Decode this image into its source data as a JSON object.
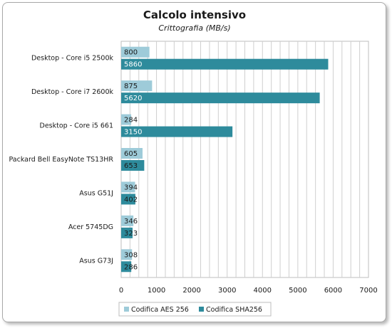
{
  "chart_data": {
    "type": "bar",
    "orientation": "horizontal",
    "title": "Calcolo intensivo",
    "subtitle": "Crittografia (MB/s)",
    "categories": [
      "Desktop - Core i5 2500k",
      "Desktop - Core i7 2600k",
      "Desktop - Core i5 661",
      "Packard Bell EasyNote  TS13HR",
      "Asus G51J",
      "Acer 5745DG",
      "Asus G73J"
    ],
    "series": [
      {
        "name": "Codifica AES 256",
        "color": "#9ecbd9",
        "values": [
          800,
          875,
          284,
          605,
          394,
          346,
          308
        ]
      },
      {
        "name": "Codifica SHA256",
        "color": "#2e8b9c",
        "values": [
          5860,
          5620,
          3150,
          653,
          402,
          323,
          286
        ]
      }
    ],
    "xlim": [
      0,
      7000
    ],
    "xticks": [
      0,
      1000,
      2000,
      3000,
      4000,
      5000,
      6000,
      7000
    ],
    "grid": true,
    "legend_position": "bottom"
  }
}
